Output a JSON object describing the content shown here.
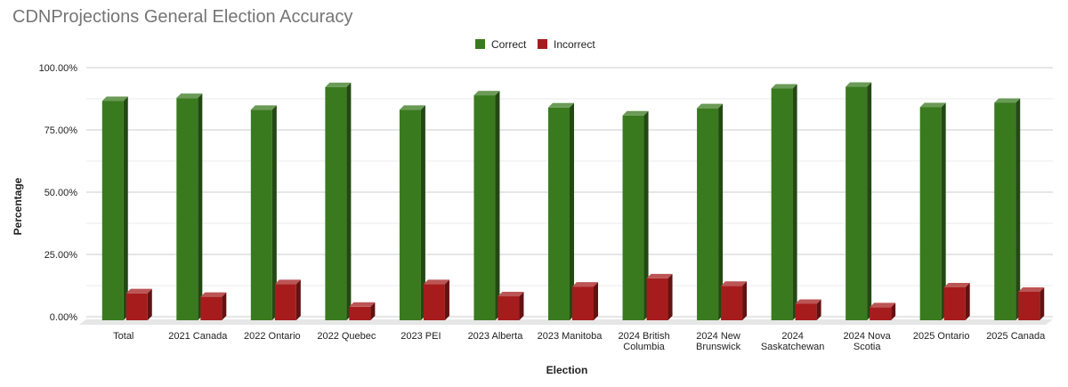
{
  "chart_data": {
    "type": "bar",
    "title": "CDNProjections General Election Accuracy",
    "xlabel": "Election",
    "ylabel": "Percentage",
    "ylim": [
      0,
      1
    ],
    "yticks": [
      "0.00%",
      "25.00%",
      "50.00%",
      "75.00%",
      "100.00%"
    ],
    "grid": true,
    "legend_position": "top-center",
    "categories": [
      [
        "Total"
      ],
      [
        "2021 Canada"
      ],
      [
        "2022 Ontario"
      ],
      [
        "2022 Quebec"
      ],
      [
        "2023 PEI"
      ],
      [
        "2023 Alberta"
      ],
      [
        "2023 Manitoba"
      ],
      [
        "2024 British",
        "Columbia"
      ],
      [
        "2024 New",
        "Brunswick"
      ],
      [
        "2024",
        "Saskatchewan"
      ],
      [
        "2024 Nova",
        "Scotia"
      ],
      [
        "2025 Ontario"
      ],
      [
        "2025 Canada"
      ]
    ],
    "series": [
      {
        "name": "Correct",
        "color": "#3a7a1f",
        "values": [
          0.866,
          0.878,
          0.831,
          0.922,
          0.831,
          0.889,
          0.84,
          0.808,
          0.837,
          0.916,
          0.923,
          0.841,
          0.859
        ]
      },
      {
        "name": "Incorrect",
        "color": "#a61c1c",
        "values": [
          0.094,
          0.08,
          0.131,
          0.04,
          0.131,
          0.082,
          0.121,
          0.154,
          0.124,
          0.052,
          0.038,
          0.118,
          0.1
        ]
      }
    ]
  }
}
